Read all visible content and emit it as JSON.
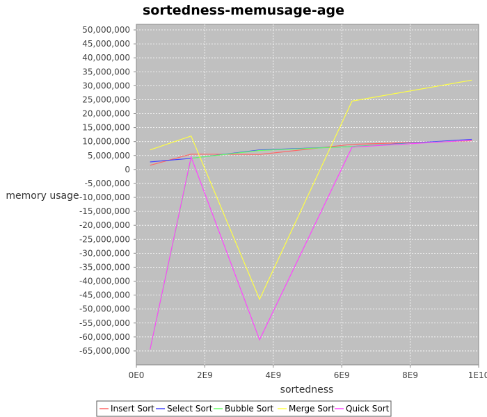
{
  "chart_data": {
    "type": "line",
    "title": "sortedness-memusage-age",
    "xlabel": "sortedness",
    "ylabel": "memory usage",
    "xlim": [
      0,
      10000000000
    ],
    "ylim": [
      -70000000,
      52000000
    ],
    "x_ticks": [
      {
        "value": 0,
        "label": "0E0"
      },
      {
        "value": 2000000000,
        "label": "2E9"
      },
      {
        "value": 4000000000,
        "label": "4E9"
      },
      {
        "value": 6000000000,
        "label": "6E9"
      },
      {
        "value": 8000000000,
        "label": "8E9"
      },
      {
        "value": 10000000000,
        "label": "1E10"
      }
    ],
    "y_ticks": [
      {
        "value": 50000000,
        "label": "50,000,000"
      },
      {
        "value": 45000000,
        "label": "45,000,000"
      },
      {
        "value": 40000000,
        "label": "40,000,000"
      },
      {
        "value": 35000000,
        "label": "35,000,000"
      },
      {
        "value": 30000000,
        "label": "30,000,000"
      },
      {
        "value": 25000000,
        "label": "25,000,000"
      },
      {
        "value": 20000000,
        "label": "20,000,000"
      },
      {
        "value": 15000000,
        "label": "15,000,000"
      },
      {
        "value": 10000000,
        "label": "10,000,000"
      },
      {
        "value": 5000000,
        "label": "5,000,000"
      },
      {
        "value": 0,
        "label": "0"
      },
      {
        "value": -5000000,
        "label": "-5,000,000"
      },
      {
        "value": -10000000,
        "label": "-10,000,000"
      },
      {
        "value": -15000000,
        "label": "-15,000,000"
      },
      {
        "value": -20000000,
        "label": "-20,000,000"
      },
      {
        "value": -25000000,
        "label": "-25,000,000"
      },
      {
        "value": -30000000,
        "label": "-30,000,000"
      },
      {
        "value": -35000000,
        "label": "-35,000,000"
      },
      {
        "value": -40000000,
        "label": "-40,000,000"
      },
      {
        "value": -45000000,
        "label": "-45,000,000"
      },
      {
        "value": -50000000,
        "label": "-50,000,000"
      },
      {
        "value": -55000000,
        "label": "-55,000,000"
      },
      {
        "value": -60000000,
        "label": "-60,000,000"
      },
      {
        "value": -65000000,
        "label": "-65,000,000"
      }
    ],
    "grid": true,
    "legend_position": "bottom",
    "plot_background": "#c0c0c0",
    "series": [
      {
        "name": "Insert Sort",
        "color": "#ff6666",
        "x": [
          400000000,
          1600000000,
          3600000000,
          6300000000,
          9800000000
        ],
        "y": [
          1500000,
          5500000,
          5400000,
          9000000,
          10300000
        ]
      },
      {
        "name": "Select Sort",
        "color": "#4444ff",
        "x": [
          400000000,
          1600000000,
          3600000000,
          6300000000,
          9800000000
        ],
        "y": [
          2700000,
          4000000,
          7000000,
          8200000,
          10800000
        ]
      },
      {
        "name": "Bubble Sort",
        "color": "#66ff66",
        "x": [
          400000000,
          1600000000,
          3600000000,
          6300000000,
          9800000000
        ],
        "y": [
          -64500000,
          4000000,
          6800000,
          8200000,
          10500000
        ]
      },
      {
        "name": "Merge Sort",
        "color": "#ffff44",
        "x": [
          400000000,
          1600000000,
          3600000000,
          6300000000,
          9800000000
        ],
        "y": [
          7000000,
          12000000,
          -46500000,
          24500000,
          32000000
        ]
      },
      {
        "name": "Quick Sort",
        "color": "#ff44ff",
        "x": [
          400000000,
          1600000000,
          3600000000,
          6300000000,
          9800000000
        ],
        "y": [
          -64500000,
          4500000,
          -61000000,
          8000000,
          10500000
        ]
      }
    ]
  }
}
